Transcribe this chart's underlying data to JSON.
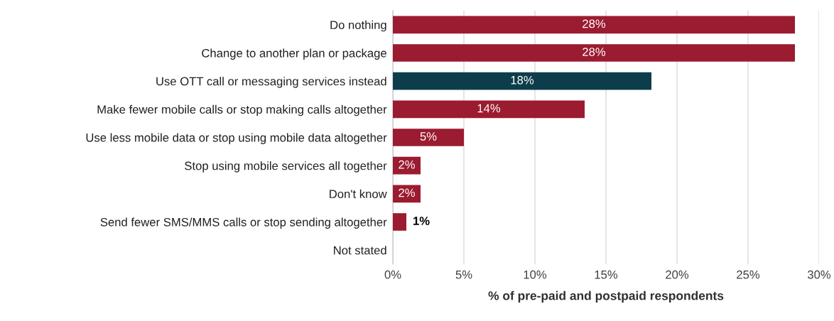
{
  "chart_data": {
    "type": "bar",
    "orientation": "horizontal",
    "xlabel": "% of pre-paid and postpaid respondents",
    "categories": [
      "Do nothing",
      "Change to another plan or package",
      "Use OTT call or messaging services instead",
      "Make fewer mobile calls or stop making calls altogether",
      "Use less mobile data or stop using mobile data altogether",
      "Stop using mobile services all together",
      "Don't know",
      "Send fewer SMS/MMS calls or stop sending altogether",
      "Not stated"
    ],
    "values": [
      28.3,
      28.3,
      18.2,
      13.5,
      5.0,
      1.95,
      1.95,
      0.95,
      0
    ],
    "value_labels": [
      "28%",
      "28%",
      "18%",
      "14%",
      "5%",
      "2%",
      "2%",
      "1%",
      null
    ],
    "colors": [
      "#9b1b30",
      "#9b1b30",
      "#0d3d4a",
      "#9b1b30",
      "#9b1b30",
      "#9b1b30",
      "#9b1b30",
      "#9b1b30",
      "#9b1b30"
    ],
    "xlim": [
      0,
      30
    ],
    "xticks": [
      {
        "value": 0,
        "label": "0%"
      },
      {
        "value": 5,
        "label": "5%"
      },
      {
        "value": 10,
        "label": "10%"
      },
      {
        "value": 15,
        "label": "15%"
      },
      {
        "value": 20,
        "label": "20%"
      },
      {
        "value": 25,
        "label": "25%"
      },
      {
        "value": 30,
        "label": "30%"
      }
    ],
    "grid": "x",
    "legend": false
  }
}
